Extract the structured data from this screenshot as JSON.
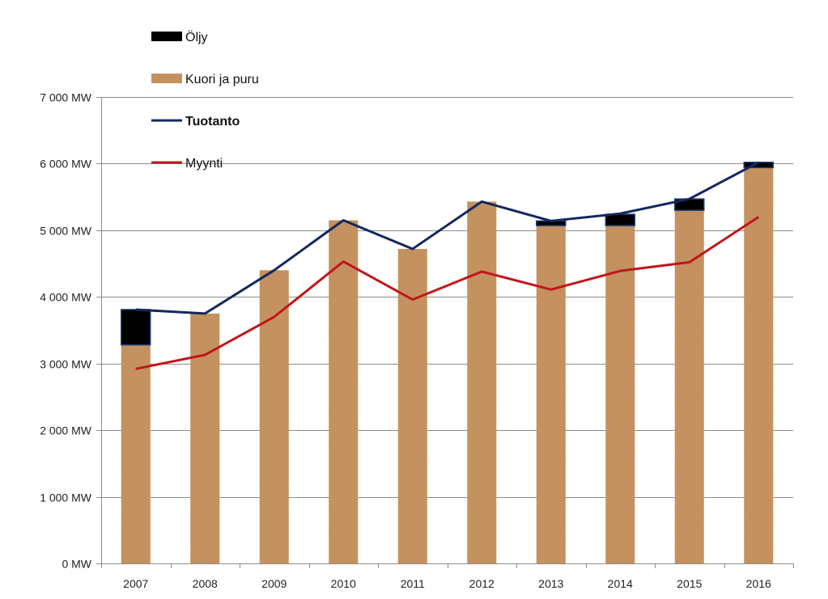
{
  "chart_data": {
    "type": "bar",
    "stacked": true,
    "categories": [
      "2007",
      "2008",
      "2009",
      "2010",
      "2011",
      "2012",
      "2013",
      "2014",
      "2015",
      "2016"
    ],
    "series": [
      {
        "name": "Kuori ja puru",
        "kind": "bar",
        "color": "#c8925e",
        "values": [
          3280,
          3750,
          4400,
          5150,
          4720,
          5430,
          5070,
          5070,
          5300,
          5940
        ]
      },
      {
        "name": "Öljy",
        "kind": "bar",
        "color": "#000000",
        "values": [
          530,
          0,
          0,
          0,
          0,
          0,
          70,
          170,
          170,
          80
        ]
      },
      {
        "name": "Tuotanto",
        "kind": "line",
        "color": "#13285e",
        "values": [
          3810,
          3750,
          4400,
          5150,
          4720,
          5430,
          5140,
          5250,
          5470,
          6020
        ]
      },
      {
        "name": "Myynti",
        "kind": "line",
        "color": "#c0161a",
        "values": [
          2920,
          3130,
          3700,
          4530,
          3960,
          4380,
          4110,
          4390,
          4520,
          5200
        ]
      }
    ],
    "ylim": [
      0,
      7000
    ],
    "yticks": [
      0,
      1000,
      2000,
      3000,
      4000,
      5000,
      6000,
      7000
    ],
    "ytick_labels": [
      "0 MW",
      "1 000 MW",
      "2 000 MW",
      "3 000 MW",
      "4 000 MW",
      "5 000 MW",
      "6 000 MW",
      "7 000 MW"
    ],
    "grid": true,
    "legend_position": "top-left",
    "legend": [
      {
        "label": "Öljy",
        "type": "box",
        "color": "#000000"
      },
      {
        "label": "Kuori ja puru",
        "type": "box",
        "color": "#c8925e"
      },
      {
        "label": "Tuotanto",
        "type": "line",
        "color": "#13285e",
        "bold": true
      },
      {
        "label": "Myynti",
        "type": "line",
        "color": "#c0161a"
      }
    ]
  }
}
